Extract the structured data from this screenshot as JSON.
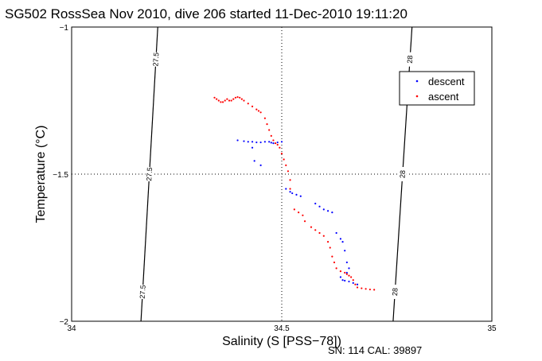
{
  "chart_data": {
    "type": "scatter",
    "title": "SG502 RossSea Nov 2010, dive 206 started 11-Dec-2010 19:11:20",
    "xlabel": "Salinity (S [PSS−78])",
    "ylabel": "Temperature (°C)",
    "xlim": [
      34,
      35
    ],
    "ylim": [
      -2,
      -1
    ],
    "x_ticks": [
      "34",
      "34.5",
      "35"
    ],
    "y_ticks": [
      "−1",
      "−1.5",
      "−2"
    ],
    "grid": "dotted at 34.5 and −1.5",
    "legend_position": "top-right",
    "footer": "SN: 114  CAL: 39897",
    "colors": {
      "descent": "#0000ff",
      "ascent": "#ff0000",
      "contour": "#000000"
    },
    "density_contours": [
      {
        "value": "27.5",
        "points": [
          [
            34.165,
            -2.0
          ],
          [
            34.205,
            -1.0
          ]
        ],
        "labels": [
          "27.5",
          "27.5",
          "27.5"
        ]
      },
      {
        "value": "28",
        "points": [
          [
            34.765,
            -2.0
          ],
          [
            34.81,
            -1.0
          ]
        ],
        "labels": [
          "28",
          "28",
          "28"
        ]
      }
    ],
    "series": [
      {
        "name": "descent",
        "color": "#0000ff",
        "points": [
          [
            34.395,
            -1.385
          ],
          [
            34.41,
            -1.388
          ],
          [
            34.42,
            -1.39
          ],
          [
            34.43,
            -1.39
          ],
          [
            34.44,
            -1.392
          ],
          [
            34.45,
            -1.392
          ],
          [
            34.46,
            -1.39
          ],
          [
            34.47,
            -1.39
          ],
          [
            34.475,
            -1.393
          ],
          [
            34.48,
            -1.395
          ],
          [
            34.49,
            -1.392
          ],
          [
            34.5,
            -1.39
          ],
          [
            34.43,
            -1.41
          ],
          [
            34.435,
            -1.455
          ],
          [
            34.45,
            -1.47
          ],
          [
            34.51,
            -1.55
          ],
          [
            34.52,
            -1.56
          ],
          [
            34.525,
            -1.565
          ],
          [
            34.535,
            -1.57
          ],
          [
            34.545,
            -1.575
          ],
          [
            34.58,
            -1.6
          ],
          [
            34.59,
            -1.61
          ],
          [
            34.6,
            -1.62
          ],
          [
            34.61,
            -1.625
          ],
          [
            34.62,
            -1.63
          ],
          [
            34.63,
            -1.7
          ],
          [
            34.64,
            -1.72
          ],
          [
            34.645,
            -1.73
          ],
          [
            34.65,
            -1.76
          ],
          [
            34.655,
            -1.8
          ],
          [
            34.66,
            -1.82
          ],
          [
            34.655,
            -1.835
          ],
          [
            34.64,
            -1.85
          ],
          [
            34.645,
            -1.86
          ],
          [
            34.65,
            -1.862
          ],
          [
            34.66,
            -1.865
          ],
          [
            34.67,
            -1.87
          ],
          [
            34.68,
            -1.875
          ]
        ]
      },
      {
        "name": "ascent",
        "color": "#ff0000",
        "points": [
          [
            34.34,
            -1.24
          ],
          [
            34.345,
            -1.245
          ],
          [
            34.35,
            -1.25
          ],
          [
            34.355,
            -1.255
          ],
          [
            34.36,
            -1.255
          ],
          [
            34.365,
            -1.25
          ],
          [
            34.37,
            -1.245
          ],
          [
            34.375,
            -1.25
          ],
          [
            34.38,
            -1.25
          ],
          [
            34.385,
            -1.245
          ],
          [
            34.39,
            -1.24
          ],
          [
            34.395,
            -1.238
          ],
          [
            34.4,
            -1.24
          ],
          [
            34.405,
            -1.245
          ],
          [
            34.41,
            -1.25
          ],
          [
            34.42,
            -1.26
          ],
          [
            34.43,
            -1.27
          ],
          [
            34.44,
            -1.28
          ],
          [
            34.445,
            -1.285
          ],
          [
            34.45,
            -1.29
          ],
          [
            34.46,
            -1.31
          ],
          [
            34.465,
            -1.33
          ],
          [
            34.47,
            -1.35
          ],
          [
            34.475,
            -1.37
          ],
          [
            34.48,
            -1.385
          ],
          [
            34.485,
            -1.395
          ],
          [
            34.49,
            -1.4
          ],
          [
            34.495,
            -1.41
          ],
          [
            34.5,
            -1.43
          ],
          [
            34.505,
            -1.45
          ],
          [
            34.51,
            -1.47
          ],
          [
            34.515,
            -1.49
          ],
          [
            34.52,
            -1.52
          ],
          [
            34.52,
            -1.55
          ],
          [
            34.53,
            -1.62
          ],
          [
            34.54,
            -1.63
          ],
          [
            34.55,
            -1.64
          ],
          [
            34.555,
            -1.66
          ],
          [
            34.57,
            -1.68
          ],
          [
            34.58,
            -1.69
          ],
          [
            34.59,
            -1.7
          ],
          [
            34.6,
            -1.71
          ],
          [
            34.61,
            -1.73
          ],
          [
            34.615,
            -1.75
          ],
          [
            34.62,
            -1.78
          ],
          [
            34.625,
            -1.8
          ],
          [
            34.63,
            -1.82
          ],
          [
            34.64,
            -1.83
          ],
          [
            34.65,
            -1.835
          ],
          [
            34.655,
            -1.84
          ],
          [
            34.66,
            -1.845
          ],
          [
            34.665,
            -1.85
          ],
          [
            34.67,
            -1.86
          ],
          [
            34.675,
            -1.875
          ],
          [
            34.68,
            -1.885
          ],
          [
            34.69,
            -1.888
          ],
          [
            34.7,
            -1.89
          ],
          [
            34.71,
            -1.892
          ],
          [
            34.72,
            -1.893
          ]
        ]
      }
    ]
  }
}
